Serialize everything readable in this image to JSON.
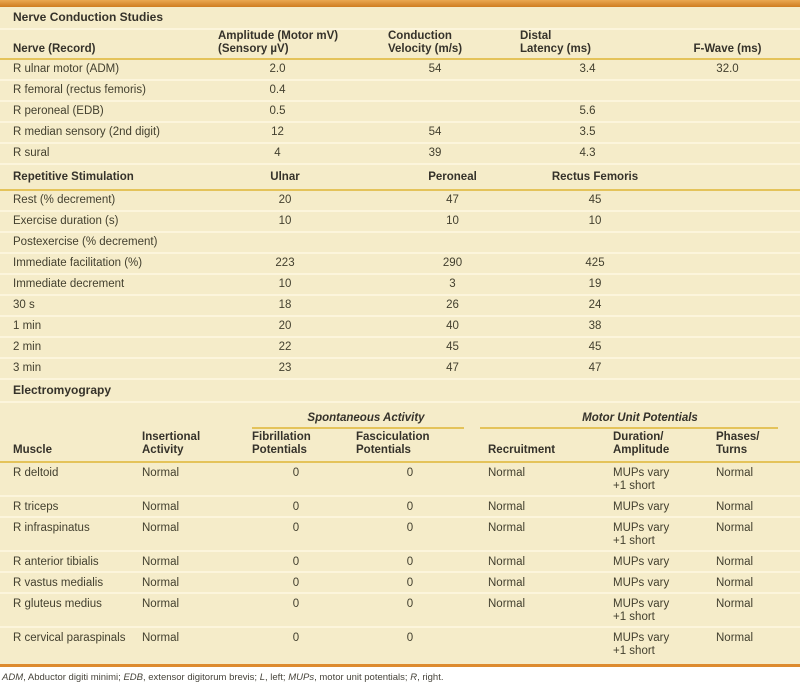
{
  "colors": {
    "accent_orange": "#dd8b2f",
    "gold_rule": "#e4c35a",
    "table_background": "#f5ecc9",
    "row_divider": "#fcf5dc",
    "text": "#43402f"
  },
  "ncs": {
    "title": "Nerve Conduction Studies",
    "columns": [
      {
        "line1": "",
        "line2": "Nerve (Record)"
      },
      {
        "line1": "Amplitude (Motor mV)",
        "line2": "(Sensory µV)"
      },
      {
        "line1": "Conduction",
        "line2": "Velocity (m/s)"
      },
      {
        "line1": "Distal",
        "line2": "Latency (ms)"
      },
      {
        "line1": "",
        "line2": "F-Wave (ms)"
      }
    ],
    "rows": [
      {
        "label": "R ulnar motor (ADM)",
        "values": [
          "2.0",
          "54",
          "3.4",
          "32.0"
        ]
      },
      {
        "label": "R femoral (rectus femoris)",
        "values": [
          "0.4",
          "",
          "",
          ""
        ]
      },
      {
        "label": "R peroneal (EDB)",
        "values": [
          "0.5",
          "",
          "5.6",
          ""
        ]
      },
      {
        "label": "R median sensory (2nd digit)",
        "values": [
          "12",
          "54",
          "3.5",
          ""
        ]
      },
      {
        "label": "R sural",
        "values": [
          "4",
          "39",
          "4.3",
          ""
        ]
      }
    ]
  },
  "rs": {
    "columns": [
      "Repetitive Stimulation",
      "Ulnar",
      "Peroneal",
      "Rectus Femoris"
    ],
    "rows": [
      {
        "label": "Rest (% decrement)",
        "values": [
          "20",
          "47",
          "45"
        ]
      },
      {
        "label": "Exercise duration (s)",
        "values": [
          "10",
          "10",
          "10"
        ]
      },
      {
        "label": "Postexercise (% decrement)",
        "values": [
          "",
          "",
          ""
        ]
      },
      {
        "label": "Immediate facilitation (%)",
        "values": [
          "223",
          "290",
          "425"
        ]
      },
      {
        "label": "Immediate decrement",
        "values": [
          "10",
          "3",
          "19"
        ]
      },
      {
        "label": "30 s",
        "values": [
          "18",
          "26",
          "24"
        ]
      },
      {
        "label": "1 min",
        "values": [
          "20",
          "40",
          "38"
        ]
      },
      {
        "label": "2 min",
        "values": [
          "22",
          "45",
          "45"
        ]
      },
      {
        "label": "3 min",
        "values": [
          "23",
          "47",
          "47"
        ]
      }
    ]
  },
  "emg": {
    "title": "Electromyograpy",
    "groups": {
      "spontaneous": "Spontaneous Activity",
      "motor_unit": "Motor Unit Potentials"
    },
    "columns": [
      {
        "line1": "",
        "line2": "Muscle"
      },
      {
        "line1": "Insertional",
        "line2": "Activity"
      },
      {
        "line1": "Fibrillation",
        "line2": "Potentials"
      },
      {
        "line1": "Fasciculation",
        "line2": "Potentials"
      },
      {
        "line1": "",
        "line2": "Recruitment"
      },
      {
        "line1": "Duration/",
        "line2": "Amplitude"
      },
      {
        "line1": "Phases/",
        "line2": "Turns"
      }
    ],
    "rows": [
      {
        "muscle": "R deltoid",
        "insertional": "Normal",
        "fibrillation": "0",
        "fasciculation": "0",
        "recruitment": "Normal",
        "duration_line1": "MUPs vary",
        "duration_line2": "+1 short",
        "phases": "Normal"
      },
      {
        "muscle": "R triceps",
        "insertional": "Normal",
        "fibrillation": "0",
        "fasciculation": "0",
        "recruitment": "Normal",
        "duration_line1": "MUPs vary",
        "duration_line2": "",
        "phases": "Normal"
      },
      {
        "muscle": "R infraspinatus",
        "insertional": "Normal",
        "fibrillation": "0",
        "fasciculation": "0",
        "recruitment": "Normal",
        "duration_line1": "MUPs vary",
        "duration_line2": "+1 short",
        "phases": "Normal"
      },
      {
        "muscle": "R anterior tibialis",
        "insertional": "Normal",
        "fibrillation": "0",
        "fasciculation": "0",
        "recruitment": "Normal",
        "duration_line1": "MUPs vary",
        "duration_line2": "",
        "phases": "Normal"
      },
      {
        "muscle": "R vastus medialis",
        "insertional": "Normal",
        "fibrillation": "0",
        "fasciculation": "0",
        "recruitment": "Normal",
        "duration_line1": "MUPs vary",
        "duration_line2": "",
        "phases": "Normal"
      },
      {
        "muscle": "R gluteus medius",
        "insertional": "Normal",
        "fibrillation": "0",
        "fasciculation": "0",
        "recruitment": "Normal",
        "duration_line1": "MUPs vary",
        "duration_line2": "+1 short",
        "phases": "Normal"
      },
      {
        "muscle": "R cervical paraspinals",
        "insertional": "Normal",
        "fibrillation": "0",
        "fasciculation": "0",
        "recruitment": "",
        "duration_line1": "MUPs vary",
        "duration_line2": "+1 short",
        "phases": "Normal"
      }
    ]
  },
  "footnote": {
    "segments": [
      {
        "text": "ADM",
        "italic": true
      },
      {
        "text": ", Abductor digiti minimi; ",
        "italic": false
      },
      {
        "text": "EDB",
        "italic": true
      },
      {
        "text": ", extensor digitorum brevis; ",
        "italic": false
      },
      {
        "text": "L",
        "italic": true
      },
      {
        "text": ", left; ",
        "italic": false
      },
      {
        "text": "MUPs",
        "italic": true
      },
      {
        "text": ", motor unit potentials; ",
        "italic": false
      },
      {
        "text": "R",
        "italic": true
      },
      {
        "text": ", right.",
        "italic": false
      }
    ]
  }
}
